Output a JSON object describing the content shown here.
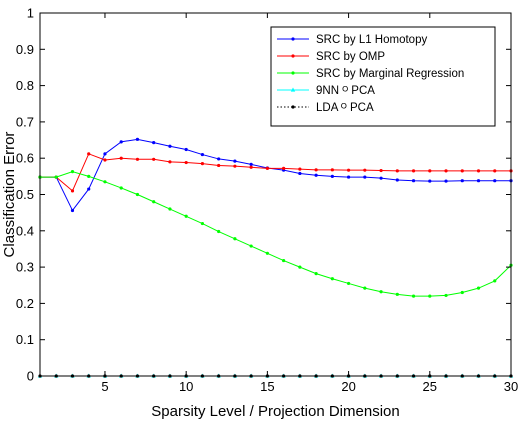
{
  "chart_data": {
    "type": "line",
    "title": "",
    "xlabel": "Sparsity Level / Projection Dimension",
    "ylabel": "Classification Error",
    "xlim": [
      1,
      30
    ],
    "ylim": [
      0,
      1
    ],
    "xticks": [
      5,
      10,
      15,
      20,
      25,
      30
    ],
    "yticks": [
      0,
      0.1,
      0.2,
      0.3,
      0.4,
      0.5,
      0.6,
      0.7,
      0.8,
      0.9,
      1
    ],
    "grid": false,
    "legend_position": "top-right",
    "x": [
      1,
      2,
      3,
      4,
      5,
      6,
      7,
      8,
      9,
      10,
      11,
      12,
      13,
      14,
      15,
      16,
      17,
      18,
      19,
      20,
      21,
      22,
      23,
      24,
      25,
      26,
      27,
      28,
      29,
      30
    ],
    "series": [
      {
        "name": "SRC by L1 Homotopy",
        "color": "#0000ff",
        "marker": "dot",
        "values": [
          0.548,
          0.548,
          0.456,
          0.515,
          0.612,
          0.645,
          0.652,
          0.643,
          0.633,
          0.624,
          0.61,
          0.598,
          0.592,
          0.583,
          0.573,
          0.567,
          0.558,
          0.553,
          0.55,
          0.548,
          0.548,
          0.545,
          0.54,
          0.538,
          0.537,
          0.537,
          0.538,
          0.538,
          0.538,
          0.538
        ]
      },
      {
        "name": "SRC by OMP",
        "color": "#ff0000",
        "marker": "dot",
        "values": [
          0.548,
          0.548,
          0.51,
          0.612,
          0.595,
          0.6,
          0.597,
          0.597,
          0.59,
          0.588,
          0.585,
          0.58,
          0.578,
          0.575,
          0.572,
          0.572,
          0.57,
          0.568,
          0.568,
          0.567,
          0.567,
          0.566,
          0.565,
          0.565,
          0.565,
          0.565,
          0.565,
          0.565,
          0.565,
          0.565
        ]
      },
      {
        "name": "SRC by Marginal Regression",
        "color": "#00ff00",
        "marker": "dot",
        "values": [
          0.548,
          0.548,
          0.563,
          0.55,
          0.535,
          0.518,
          0.5,
          0.48,
          0.46,
          0.44,
          0.42,
          0.398,
          0.378,
          0.358,
          0.338,
          0.318,
          0.3,
          0.282,
          0.268,
          0.255,
          0.242,
          0.232,
          0.225,
          0.22,
          0.22,
          0.222,
          0.23,
          0.242,
          0.262,
          0.305
        ]
      },
      {
        "name": "9NN ᴼ PCA",
        "color": "#00ffff",
        "marker": "triangle",
        "values": [
          0,
          0,
          0,
          0,
          0,
          0,
          0,
          0,
          0,
          0,
          0,
          0,
          0,
          0,
          0,
          0,
          0,
          0,
          0,
          0,
          0,
          0,
          0,
          0,
          0,
          0,
          0,
          0,
          0,
          0
        ]
      },
      {
        "name": "LDA ᴼ PCA",
        "color": "#000000",
        "marker": "dot",
        "values": [
          0,
          0,
          0,
          0,
          0,
          0,
          0,
          0,
          0,
          0,
          0,
          0,
          0,
          0,
          0,
          0,
          0,
          0,
          0,
          0,
          0,
          0,
          0,
          0,
          0,
          0,
          0,
          0,
          0,
          0
        ]
      }
    ]
  }
}
